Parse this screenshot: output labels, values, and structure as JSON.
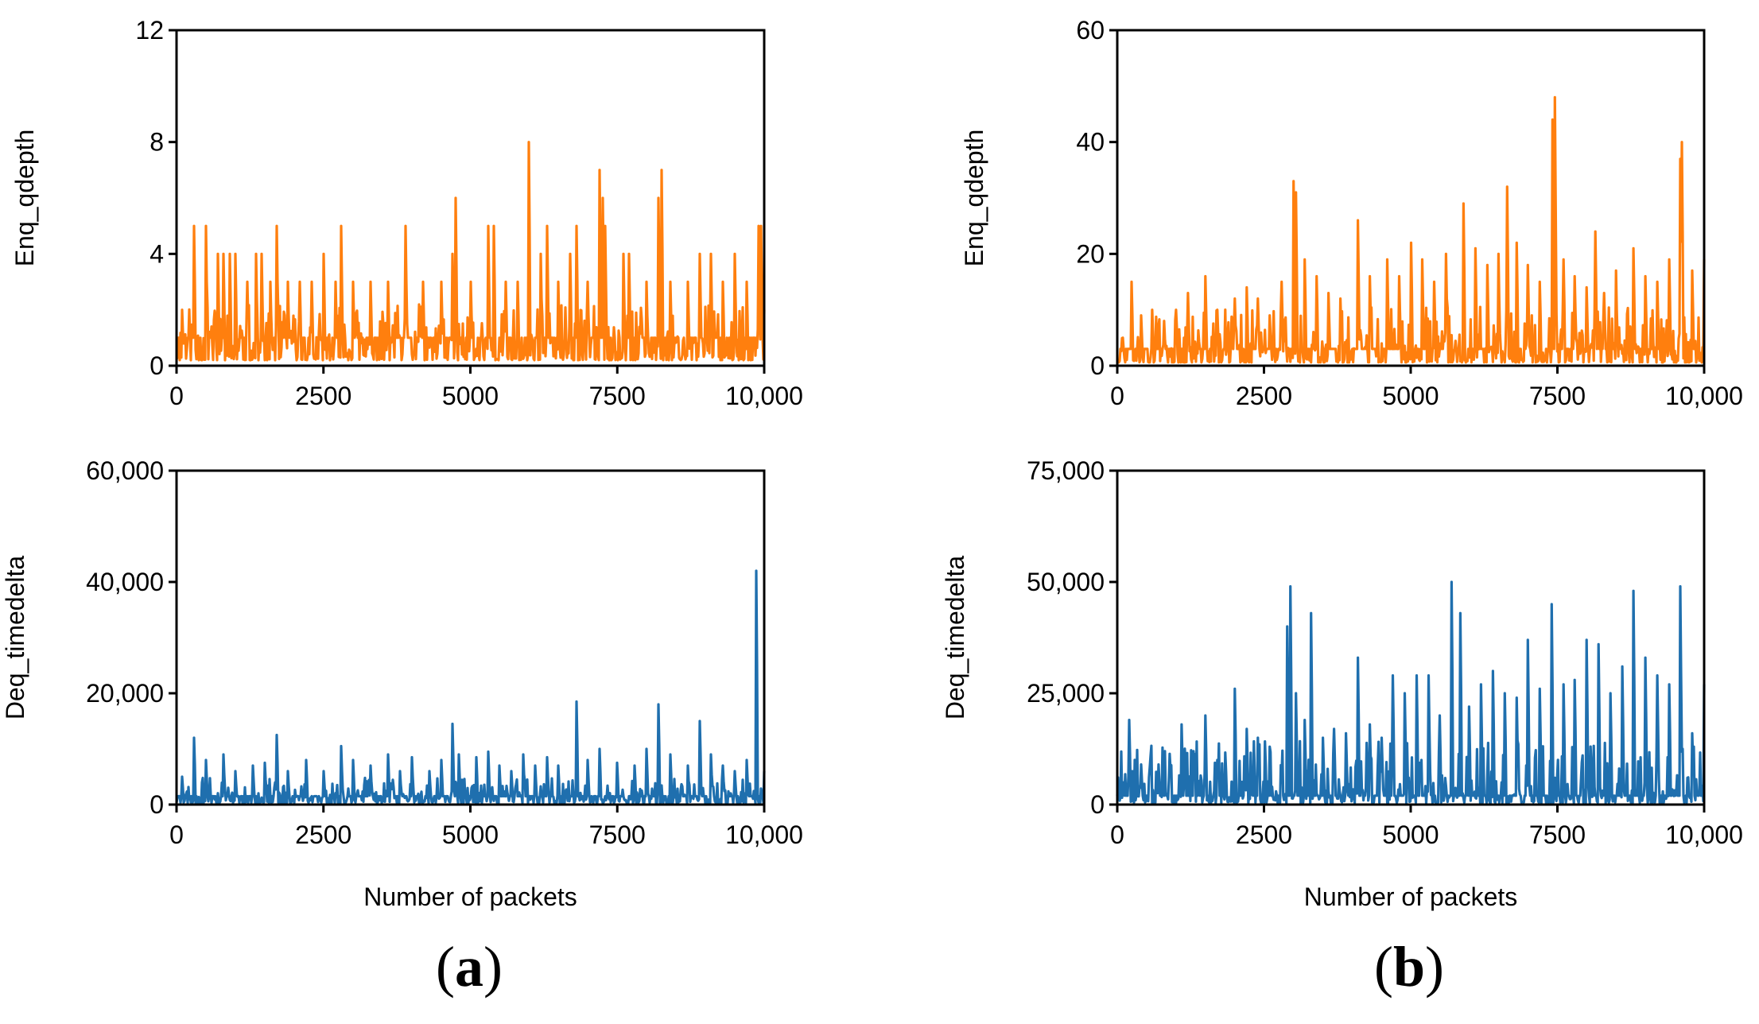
{
  "figure": {
    "panel_labels": [
      {
        "open": "(",
        "letter": "a",
        "close": ")"
      },
      {
        "open": "(",
        "letter": "b",
        "close": ")"
      }
    ]
  },
  "colors": {
    "enq": "#FF7F0E",
    "deq": "#1F6FAE"
  },
  "chart_data": [
    {
      "id": "a-top",
      "panel": "a",
      "type": "line",
      "title": "",
      "xlabel": "",
      "ylabel": "Enq_qdepth",
      "xlim": [
        0,
        10000
      ],
      "ylim": [
        0,
        12
      ],
      "xticks": [
        0,
        2500,
        5000,
        7500,
        10000
      ],
      "xtick_labels": [
        "0",
        "2500",
        "5000",
        "7500",
        "10,000"
      ],
      "yticks": [
        0,
        4,
        8,
        12
      ],
      "ytick_labels": [
        "0",
        "4",
        "8",
        "12"
      ],
      "series": [
        {
          "name": "Enq_qdepth",
          "color": "#FF7F0E",
          "baseline": 1,
          "noise_max": 2,
          "seed": 11,
          "peaks": [
            [
              100,
              2
            ],
            [
              300,
              5
            ],
            [
              500,
              5
            ],
            [
              700,
              4
            ],
            [
              800,
              4
            ],
            [
              900,
              4
            ],
            [
              1000,
              4
            ],
            [
              1200,
              3
            ],
            [
              1350,
              4
            ],
            [
              1450,
              4
            ],
            [
              1600,
              3
            ],
            [
              1700,
              5
            ],
            [
              1900,
              3
            ],
            [
              2100,
              3
            ],
            [
              2300,
              3
            ],
            [
              2500,
              4
            ],
            [
              2700,
              3
            ],
            [
              2800,
              5
            ],
            [
              3000,
              3
            ],
            [
              3300,
              3
            ],
            [
              3600,
              3
            ],
            [
              3900,
              5
            ],
            [
              4200,
              3
            ],
            [
              4500,
              3
            ],
            [
              4700,
              4
            ],
            [
              4750,
              6
            ],
            [
              5000,
              3
            ],
            [
              5300,
              5
            ],
            [
              5400,
              5
            ],
            [
              5600,
              3
            ],
            [
              5800,
              3
            ],
            [
              6000,
              8
            ],
            [
              6200,
              4
            ],
            [
              6300,
              5
            ],
            [
              6500,
              3
            ],
            [
              6700,
              4
            ],
            [
              6800,
              5
            ],
            [
              7000,
              3
            ],
            [
              7200,
              7
            ],
            [
              7250,
              6
            ],
            [
              7300,
              5
            ],
            [
              7600,
              4
            ],
            [
              7700,
              4
            ],
            [
              8000,
              3
            ],
            [
              8200,
              6
            ],
            [
              8250,
              7
            ],
            [
              8400,
              3
            ],
            [
              8700,
              3
            ],
            [
              8900,
              4
            ],
            [
              9100,
              4
            ],
            [
              9300,
              3
            ],
            [
              9500,
              4
            ],
            [
              9700,
              3
            ],
            [
              9900,
              5
            ],
            [
              9950,
              5
            ],
            [
              10000,
              2
            ]
          ]
        }
      ]
    },
    {
      "id": "a-bottom",
      "panel": "a",
      "type": "line",
      "title": "",
      "xlabel": "Number of packets",
      "ylabel": "Deq_timedelta",
      "xlim": [
        0,
        10000
      ],
      "ylim": [
        0,
        60000
      ],
      "xticks": [
        0,
        2500,
        5000,
        7500,
        10000
      ],
      "xtick_labels": [
        "0",
        "2500",
        "5000",
        "7500",
        "10,000"
      ],
      "yticks": [
        0,
        20000,
        40000,
        60000
      ],
      "ytick_labels": [
        "0",
        "20,000",
        "40,000",
        "60,000"
      ],
      "series": [
        {
          "name": "Deq_timedelta",
          "color": "#1F6FAE",
          "baseline": 1500,
          "noise_max": 4500,
          "seed": 23,
          "peaks": [
            [
              100,
              5000
            ],
            [
              300,
              12000
            ],
            [
              500,
              8000
            ],
            [
              800,
              9000
            ],
            [
              1000,
              6000
            ],
            [
              1300,
              7000
            ],
            [
              1500,
              7500
            ],
            [
              1700,
              12500
            ],
            [
              1900,
              6000
            ],
            [
              2200,
              8000
            ],
            [
              2500,
              6000
            ],
            [
              2800,
              10500
            ],
            [
              3000,
              8000
            ],
            [
              3300,
              7000
            ],
            [
              3600,
              9000
            ],
            [
              3800,
              6000
            ],
            [
              4000,
              8500
            ],
            [
              4300,
              6000
            ],
            [
              4500,
              8000
            ],
            [
              4700,
              14500
            ],
            [
              4800,
              9000
            ],
            [
              5100,
              8500
            ],
            [
              5300,
              9500
            ],
            [
              5500,
              7000
            ],
            [
              5700,
              6000
            ],
            [
              5900,
              9000
            ],
            [
              6100,
              7000
            ],
            [
              6300,
              8500
            ],
            [
              6500,
              7000
            ],
            [
              6800,
              18500
            ],
            [
              7000,
              8000
            ],
            [
              7200,
              10000
            ],
            [
              7500,
              7500
            ],
            [
              7800,
              7000
            ],
            [
              8000,
              10000
            ],
            [
              8200,
              18000
            ],
            [
              8400,
              9000
            ],
            [
              8700,
              7000
            ],
            [
              8900,
              15000
            ],
            [
              9100,
              9000
            ],
            [
              9300,
              7000
            ],
            [
              9500,
              6000
            ],
            [
              9700,
              8000
            ],
            [
              9870,
              42000
            ],
            [
              10000,
              6000
            ]
          ]
        }
      ]
    },
    {
      "id": "b-top",
      "panel": "b",
      "type": "line",
      "title": "",
      "xlabel": "",
      "ylabel": "Enq_qdepth",
      "xlim": [
        0,
        10000
      ],
      "ylim": [
        0,
        60
      ],
      "xticks": [
        0,
        2500,
        5000,
        7500,
        10000
      ],
      "xtick_labels": [
        "0",
        "2500",
        "5000",
        "7500",
        "10,000"
      ],
      "yticks": [
        0,
        20,
        40,
        60
      ],
      "ytick_labels": [
        "0",
        "20",
        "40",
        "60"
      ],
      "series": [
        {
          "name": "Enq_qdepth",
          "color": "#FF7F0E",
          "baseline": 3,
          "noise_max": 10,
          "seed": 37,
          "peaks": [
            [
              100,
              5
            ],
            [
              250,
              15
            ],
            [
              400,
              9
            ],
            [
              600,
              10
            ],
            [
              800,
              8
            ],
            [
              1000,
              10
            ],
            [
              1200,
              13
            ],
            [
              1500,
              16
            ],
            [
              1700,
              10
            ],
            [
              2000,
              12
            ],
            [
              2200,
              14
            ],
            [
              2400,
              12
            ],
            [
              2600,
              9
            ],
            [
              2800,
              15
            ],
            [
              3000,
              33
            ],
            [
              3050,
              31
            ],
            [
              3200,
              19
            ],
            [
              3400,
              16
            ],
            [
              3600,
              13
            ],
            [
              3800,
              12
            ],
            [
              4100,
              26
            ],
            [
              4300,
              16
            ],
            [
              4600,
              19
            ],
            [
              4800,
              16
            ],
            [
              5000,
              22
            ],
            [
              5200,
              19
            ],
            [
              5400,
              15
            ],
            [
              5600,
              20
            ],
            [
              5900,
              29
            ],
            [
              6100,
              21
            ],
            [
              6300,
              18
            ],
            [
              6500,
              20
            ],
            [
              6650,
              32
            ],
            [
              6800,
              22
            ],
            [
              7000,
              18
            ],
            [
              7200,
              15
            ],
            [
              7420,
              44
            ],
            [
              7460,
              48
            ],
            [
              7600,
              19
            ],
            [
              7800,
              16
            ],
            [
              8000,
              14
            ],
            [
              8150,
              24
            ],
            [
              8300,
              13
            ],
            [
              8500,
              17
            ],
            [
              8800,
              21
            ],
            [
              9000,
              16
            ],
            [
              9200,
              15
            ],
            [
              9400,
              19
            ],
            [
              9600,
              37
            ],
            [
              9620,
              40
            ],
            [
              9800,
              17
            ],
            [
              10000,
              19
            ]
          ]
        }
      ]
    },
    {
      "id": "b-bottom",
      "panel": "b",
      "type": "line",
      "title": "",
      "xlabel": "Number of packets",
      "ylabel": "Deq_timedelta",
      "xlim": [
        0,
        10000
      ],
      "ylim": [
        0,
        75000
      ],
      "xticks": [
        0,
        2500,
        5000,
        7500,
        10000
      ],
      "xtick_labels": [
        "0",
        "2500",
        "5000",
        "7500",
        "10,000"
      ],
      "yticks": [
        0,
        25000,
        50000,
        75000
      ],
      "ytick_labels": [
        "0",
        "25,000",
        "50,000",
        "75,000"
      ],
      "series": [
        {
          "name": "Deq_timedelta",
          "color": "#1F6FAE",
          "baseline": 2000,
          "noise_max": 14000,
          "seed": 51,
          "peaks": [
            [
              100,
              5000
            ],
            [
              200,
              19000
            ],
            [
              400,
              9000
            ],
            [
              700,
              9000
            ],
            [
              900,
              8000
            ],
            [
              1100,
              18000
            ],
            [
              1300,
              12000
            ],
            [
              1500,
              20000
            ],
            [
              1700,
              10000
            ],
            [
              2000,
              26000
            ],
            [
              2200,
              17000
            ],
            [
              2400,
              15000
            ],
            [
              2600,
              13000
            ],
            [
              2900,
              40000
            ],
            [
              2950,
              49000
            ],
            [
              3050,
              25000
            ],
            [
              3200,
              19000
            ],
            [
              3300,
              43000
            ],
            [
              3500,
              15000
            ],
            [
              3700,
              17000
            ],
            [
              3900,
              16000
            ],
            [
              4100,
              33000
            ],
            [
              4300,
              18000
            ],
            [
              4500,
              15000
            ],
            [
              4700,
              29000
            ],
            [
              4900,
              25000
            ],
            [
              5100,
              29000
            ],
            [
              5300,
              29000
            ],
            [
              5500,
              20000
            ],
            [
              5700,
              50000
            ],
            [
              5850,
              43000
            ],
            [
              6000,
              22000
            ],
            [
              6200,
              27000
            ],
            [
              6400,
              30000
            ],
            [
              6600,
              25000
            ],
            [
              6800,
              24000
            ],
            [
              7000,
              37000
            ],
            [
              7200,
              26000
            ],
            [
              7400,
              45000
            ],
            [
              7600,
              27000
            ],
            [
              7800,
              28000
            ],
            [
              8000,
              37000
            ],
            [
              8200,
              36000
            ],
            [
              8400,
              25000
            ],
            [
              8600,
              31000
            ],
            [
              8800,
              48000
            ],
            [
              9000,
              33000
            ],
            [
              9200,
              29000
            ],
            [
              9400,
              27000
            ],
            [
              9600,
              49000
            ],
            [
              9800,
              16000
            ],
            [
              10000,
              27000
            ]
          ]
        }
      ]
    }
  ]
}
